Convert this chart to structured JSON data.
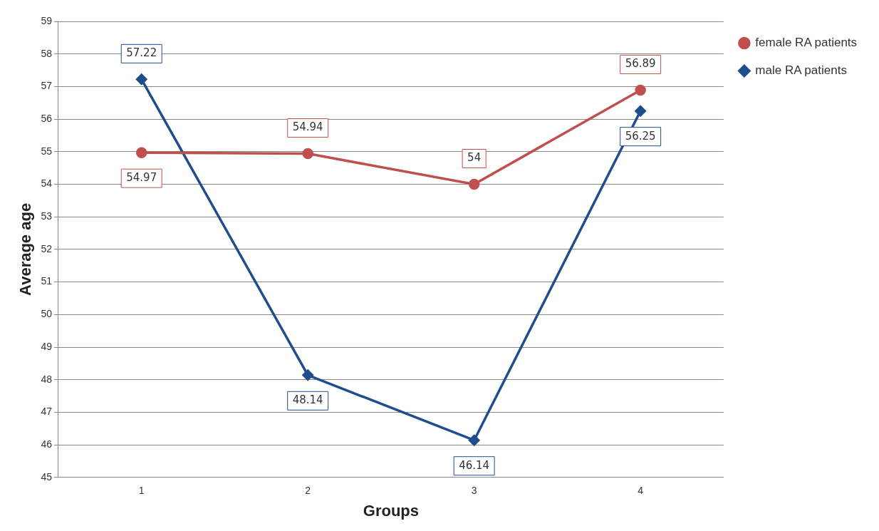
{
  "chart_data": {
    "type": "line",
    "xlabel": "Groups",
    "ylabel": "Average age",
    "categories": [
      "1",
      "2",
      "3",
      "4"
    ],
    "series": [
      {
        "name": "female RA patients",
        "color": "#c0504d",
        "marker": "circle",
        "values": [
          54.97,
          54.94,
          54,
          56.89
        ]
      },
      {
        "name": "male RA patients",
        "color": "#1f4e8c",
        "marker": "diamond",
        "values": [
          57.22,
          48.14,
          46.14,
          56.25
        ]
      }
    ],
    "ylim": [
      45,
      59
    ],
    "yticks": [
      45,
      46,
      47,
      48,
      49,
      50,
      51,
      52,
      53,
      54,
      55,
      56,
      57,
      58,
      59
    ],
    "grid": "y",
    "legend": "right",
    "data_labels": true
  }
}
